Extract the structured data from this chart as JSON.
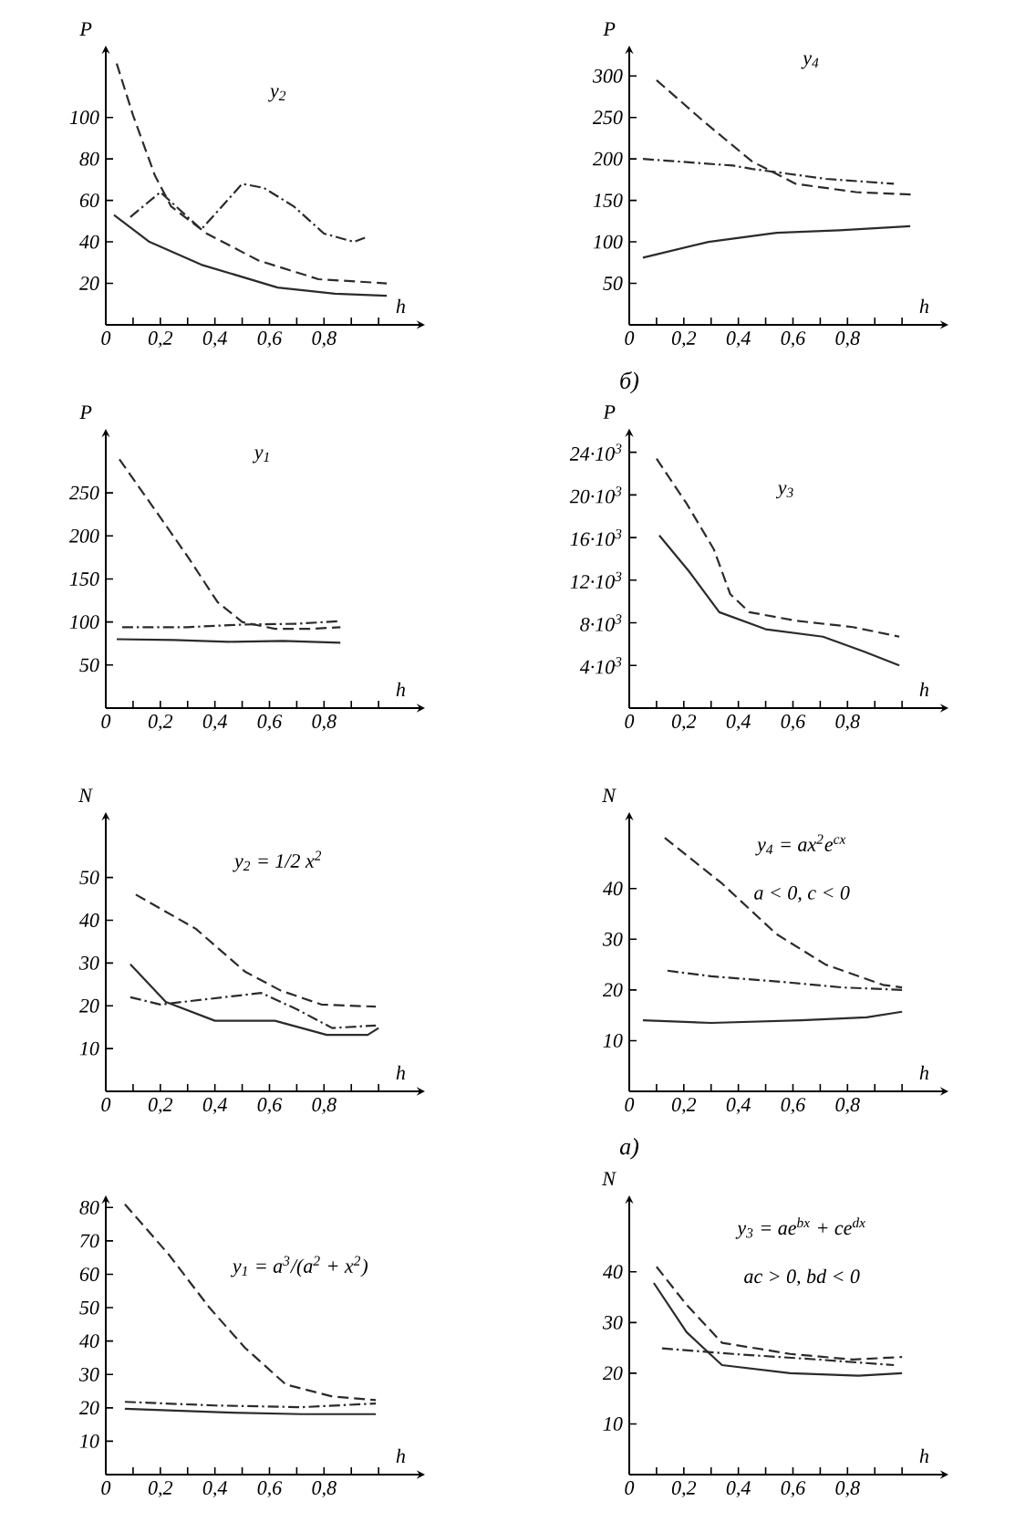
{
  "chart_data": [
    {
      "type": "line",
      "title": "y$_{1}$ = a$^{3}$/(a$^{2}$ + x$^{2}$)",
      "xlabel": "h",
      "xlim": [
        0,
        1.15
      ],
      "ylim": [
        0,
        82
      ],
      "xticks": [
        {
          "value": 0,
          "label": "0"
        },
        {
          "value": 0.1,
          "label": null
        },
        {
          "value": 0.2,
          "label": "0,2"
        },
        {
          "value": 0.3,
          "label": null
        },
        {
          "value": 0.4,
          "label": "0,4"
        },
        {
          "value": 0.5,
          "label": null
        },
        {
          "value": 0.6,
          "label": "0,6"
        },
        {
          "value": 0.7,
          "label": null
        },
        {
          "value": 0.8,
          "label": "0,8"
        },
        {
          "value": 0.9,
          "label": null
        },
        {
          "value": 1.0,
          "label": null
        }
      ],
      "yticks": [
        10,
        20,
        30,
        40,
        50,
        60,
        70,
        80
      ],
      "series": [
        {
          "color": "#2b2b2b",
          "line_style": "solid",
          "x": [
            0.07,
            0.44,
            0.72,
            0.99
          ],
          "values": [
            19.7,
            18.6,
            18.1,
            18.1
          ]
        },
        {
          "color": "#2b2b2b",
          "line_style": "dashed",
          "x": [
            0.07,
            0.23,
            0.38,
            0.51,
            0.66,
            0.83,
            0.99
          ],
          "values": [
            81,
            66,
            50,
            38,
            27,
            23.4,
            22.3
          ]
        },
        {
          "color": "#2b2b2b",
          "line_style": "dashdot",
          "x": [
            0.07,
            0.4,
            0.72,
            0.99
          ],
          "values": [
            21.8,
            20.7,
            20.2,
            21.3
          ]
        }
      ]
    },
    {
      "type": "line",
      "title": "y$_{2}$ = 1/2 x$^{2}$",
      "xlabel": "h",
      "ylabel": "N",
      "xlim": [
        0,
        1.15
      ],
      "ylim": [
        0,
        64
      ],
      "xticks": [
        {
          "value": 0,
          "label": "0"
        },
        {
          "value": 0.1,
          "label": null
        },
        {
          "value": 0.2,
          "label": "0,2"
        },
        {
          "value": 0.3,
          "label": null
        },
        {
          "value": 0.4,
          "label": "0,4"
        },
        {
          "value": 0.5,
          "label": null
        },
        {
          "value": 0.6,
          "label": "0,6"
        },
        {
          "value": 0.7,
          "label": null
        },
        {
          "value": 0.8,
          "label": "0,8"
        },
        {
          "value": 0.9,
          "label": null
        },
        {
          "value": 1.0,
          "label": null
        }
      ],
      "yticks": [
        10,
        20,
        30,
        40,
        50
      ],
      "series": [
        {
          "color": "#2b2b2b",
          "line_style": "solid",
          "x": [
            0.09,
            0.22,
            0.4,
            0.62,
            0.81,
            0.96,
            1.0
          ],
          "values": [
            29.7,
            20.9,
            16.5,
            16.5,
            13.2,
            13.2,
            14.8
          ]
        },
        {
          "color": "#2b2b2b",
          "line_style": "dashed",
          "x": [
            0.11,
            0.33,
            0.51,
            0.64,
            0.79,
            0.99
          ],
          "values": [
            46,
            38,
            28,
            23.6,
            20.3,
            19.8
          ]
        },
        {
          "color": "#2b2b2b",
          "line_style": "dashdot",
          "x": [
            0.09,
            0.2,
            0.35,
            0.57,
            0.7,
            0.83,
            0.99
          ],
          "values": [
            22,
            20.3,
            21.4,
            23,
            19.2,
            14.8,
            15.4
          ]
        }
      ]
    },
    {
      "type": "line",
      "title": "y$_{1}$",
      "xlabel": "h",
      "ylabel": "P",
      "xlim": [
        0,
        1.15
      ],
      "ylim": [
        0,
        318
      ],
      "xticks": [
        {
          "value": 0,
          "label": "0"
        },
        {
          "value": 0.1,
          "label": null
        },
        {
          "value": 0.2,
          "label": "0,2"
        },
        {
          "value": 0.3,
          "label": null
        },
        {
          "value": 0.4,
          "label": "0,4"
        },
        {
          "value": 0.5,
          "label": null
        },
        {
          "value": 0.6,
          "label": "0,6"
        },
        {
          "value": 0.7,
          "label": null
        },
        {
          "value": 0.8,
          "label": "0,8"
        },
        {
          "value": 0.9,
          "label": null
        },
        {
          "value": 1.0,
          "label": null
        }
      ],
      "yticks": [
        50,
        100,
        150,
        200,
        250
      ],
      "series": [
        {
          "color": "#2b2b2b",
          "line_style": "solid",
          "x": [
            0.04,
            0.25,
            0.45,
            0.65,
            0.86
          ],
          "values": [
            80,
            79,
            77,
            78,
            76
          ]
        },
        {
          "color": "#2b2b2b",
          "line_style": "dashed",
          "x": [
            0.05,
            0.17,
            0.3,
            0.41,
            0.5,
            0.62,
            0.75,
            0.86
          ],
          "values": [
            289,
            235,
            176,
            123,
            100,
            92,
            92,
            94
          ]
        },
        {
          "color": "#2b2b2b",
          "line_style": "dashdot",
          "x": [
            0.06,
            0.3,
            0.5,
            0.7,
            0.86
          ],
          "values": [
            94,
            94,
            97,
            98,
            101
          ]
        }
      ]
    },
    {
      "type": "line",
      "title": "y$_{2}$",
      "xlabel": "h",
      "ylabel": "P",
      "xlim": [
        0,
        1.15
      ],
      "ylim": [
        0,
        132
      ],
      "xticks": [
        {
          "value": 0,
          "label": "0"
        },
        {
          "value": 0.1,
          "label": null
        },
        {
          "value": 0.2,
          "label": "0,2"
        },
        {
          "value": 0.3,
          "label": null
        },
        {
          "value": 0.4,
          "label": "0,4"
        },
        {
          "value": 0.5,
          "label": null
        },
        {
          "value": 0.6,
          "label": "0,6"
        },
        {
          "value": 0.7,
          "label": null
        },
        {
          "value": 0.8,
          "label": "0,8"
        },
        {
          "value": 0.9,
          "label": null
        },
        {
          "value": 1.0,
          "label": null
        }
      ],
      "yticks": [
        20,
        40,
        60,
        80,
        100
      ],
      "series": [
        {
          "color": "#2b2b2b",
          "line_style": "solid",
          "x": [
            0.03,
            0.16,
            0.35,
            0.63,
            0.84,
            1.03
          ],
          "values": [
            53,
            40,
            29,
            18,
            15,
            14
          ]
        },
        {
          "color": "#2b2b2b",
          "line_style": "dashed",
          "x": [
            0.04,
            0.1,
            0.18,
            0.24,
            0.37,
            0.56,
            0.78,
            1.03
          ],
          "values": [
            126,
            101,
            72,
            57,
            44,
            31,
            22,
            20
          ]
        },
        {
          "color": "#2b2b2b",
          "line_style": "dashdot",
          "x": [
            0.09,
            0.2,
            0.35,
            0.5,
            0.58,
            0.69,
            0.8,
            0.91,
            0.95
          ],
          "values": [
            52,
            64,
            46,
            68,
            66,
            57,
            44,
            40,
            42
          ]
        }
      ]
    },
    {
      "type": "line",
      "title": "y$_{3}$ = ae$^{bx}$ + ce$^{dx}$",
      "subtitle": "ac > 0, bd < 0",
      "xlabel": "h",
      "ylabel": "N",
      "xlim": [
        0,
        1.15
      ],
      "ylim": [
        0,
        54
      ],
      "xticks": [
        {
          "value": 0,
          "label": "0"
        },
        {
          "value": 0.1,
          "label": null
        },
        {
          "value": 0.2,
          "label": "0,2"
        },
        {
          "value": 0.3,
          "label": null
        },
        {
          "value": 0.4,
          "label": "0,4"
        },
        {
          "value": 0.5,
          "label": null
        },
        {
          "value": 0.6,
          "label": "0,6"
        },
        {
          "value": 0.7,
          "label": null
        },
        {
          "value": 0.8,
          "label": "0,8"
        },
        {
          "value": 0.9,
          "label": null
        },
        {
          "value": 1.0,
          "label": null
        }
      ],
      "yticks": [
        10,
        20,
        30,
        40
      ],
      "series": [
        {
          "color": "#2b2b2b",
          "line_style": "solid",
          "x": [
            0.09,
            0.21,
            0.34,
            0.59,
            0.84,
            1.0
          ],
          "values": [
            37.8,
            28.1,
            21.6,
            20,
            19.5,
            20
          ]
        },
        {
          "color": "#2b2b2b",
          "line_style": "dashed",
          "x": [
            0.1,
            0.21,
            0.34,
            0.59,
            0.82,
            1.0
          ],
          "values": [
            41,
            33.5,
            26,
            23.8,
            22.7,
            23.2
          ]
        },
        {
          "color": "#2b2b2b",
          "line_style": "dashdot",
          "x": [
            0.12,
            0.38,
            0.69,
            0.97
          ],
          "values": [
            24.9,
            23.8,
            22.7,
            21.6
          ]
        }
      ]
    },
    {
      "type": "line",
      "title": "y$_{4}$ = ax$^{2}$e$^{cx}$",
      "subtitle": "a < 0, c < 0",
      "xlabel": "h",
      "ylabel": "N",
      "xlim": [
        0,
        1.15
      ],
      "ylim": [
        0,
        54
      ],
      "xticks": [
        {
          "value": 0,
          "label": "0"
        },
        {
          "value": 0.1,
          "label": null
        },
        {
          "value": 0.2,
          "label": "0,2"
        },
        {
          "value": 0.3,
          "label": null
        },
        {
          "value": 0.4,
          "label": "0,4"
        },
        {
          "value": 0.5,
          "label": null
        },
        {
          "value": 0.6,
          "label": "0,6"
        },
        {
          "value": 0.7,
          "label": null
        },
        {
          "value": 0.8,
          "label": "0,8"
        },
        {
          "value": 0.9,
          "label": null
        },
        {
          "value": 1.0,
          "label": null
        }
      ],
      "yticks": [
        10,
        20,
        30,
        40
      ],
      "annotations": [
        "а)"
      ],
      "series": [
        {
          "color": "#2b2b2b",
          "line_style": "solid",
          "x": [
            0.05,
            0.3,
            0.63,
            0.87,
            1.0
          ],
          "values": [
            14,
            13.5,
            14,
            14.6,
            15.7
          ]
        },
        {
          "color": "#2b2b2b",
          "line_style": "dashed",
          "x": [
            0.13,
            0.34,
            0.54,
            0.72,
            0.93,
            1.0
          ],
          "values": [
            50,
            41,
            31,
            25,
            21,
            20.5
          ]
        },
        {
          "color": "#2b2b2b",
          "line_style": "dashdot",
          "x": [
            0.14,
            0.3,
            0.56,
            0.78,
            1.0
          ],
          "values": [
            23.8,
            22.7,
            21.6,
            20.5,
            20
          ]
        }
      ]
    },
    {
      "type": "line",
      "title": "y$_{3}$",
      "xlabel": "h",
      "ylabel": "P",
      "xlim": [
        0,
        1.15
      ],
      "ylim": [
        0,
        25700
      ],
      "xticks": [
        {
          "value": 0,
          "label": "0"
        },
        {
          "value": 0.1,
          "label": null
        },
        {
          "value": 0.2,
          "label": "0,2"
        },
        {
          "value": 0.3,
          "label": null
        },
        {
          "value": 0.4,
          "label": "0,4"
        },
        {
          "value": 0.5,
          "label": null
        },
        {
          "value": 0.6,
          "label": "0,6"
        },
        {
          "value": 0.7,
          "label": null
        },
        {
          "value": 0.8,
          "label": "0,8"
        },
        {
          "value": 0.9,
          "label": null
        },
        {
          "value": 1.0,
          "label": null
        }
      ],
      "yticks": [
        {
          "value": 4000,
          "label": "4·10$^{3}$"
        },
        {
          "value": 8000,
          "label": "8·10$^{3}$"
        },
        {
          "value": 12000,
          "label": "12·10$^{3}$"
        },
        {
          "value": 16000,
          "label": "16·10$^{3}$"
        },
        {
          "value": 20000,
          "label": "20·10$^{3}$"
        },
        {
          "value": 24000,
          "label": "24·10$^{3}$"
        }
      ],
      "series": [
        {
          "color": "#2b2b2b",
          "line_style": "solid",
          "x": [
            0.11,
            0.22,
            0.33,
            0.5,
            0.71,
            0.86,
            0.99
          ],
          "values": [
            16200,
            12800,
            9000,
            7400,
            6700,
            5300,
            4000
          ]
        },
        {
          "color": "#2b2b2b",
          "line_style": "dashed",
          "x": [
            0.1,
            0.21,
            0.31,
            0.37,
            0.44,
            0.61,
            0.82,
            0.99
          ],
          "values": [
            23400,
            19200,
            14900,
            10700,
            9000,
            8200,
            7600,
            6700
          ]
        }
      ]
    },
    {
      "type": "line",
      "title": "y$_{4}$",
      "xlabel": "h",
      "ylabel": "P",
      "xlim": [
        0,
        1.15
      ],
      "ylim": [
        0,
        330
      ],
      "xticks": [
        {
          "value": 0,
          "label": "0"
        },
        {
          "value": 0.1,
          "label": null
        },
        {
          "value": 0.2,
          "label": "0,2"
        },
        {
          "value": 0.3,
          "label": null
        },
        {
          "value": 0.4,
          "label": "0,4"
        },
        {
          "value": 0.5,
          "label": null
        },
        {
          "value": 0.6,
          "label": "0,6"
        },
        {
          "value": 0.7,
          "label": null
        },
        {
          "value": 0.8,
          "label": "0,8"
        },
        {
          "value": 0.9,
          "label": null
        },
        {
          "value": 1.0,
          "label": null
        }
      ],
      "yticks": [
        50,
        100,
        150,
        200,
        250,
        300
      ],
      "annotations": [
        "б)"
      ],
      "series": [
        {
          "color": "#2b2b2b",
          "line_style": "solid",
          "x": [
            0.05,
            0.29,
            0.54,
            0.77,
            1.03
          ],
          "values": [
            81,
            100,
            111,
            114,
            119
          ]
        },
        {
          "color": "#2b2b2b",
          "line_style": "dashed",
          "x": [
            0.1,
            0.27,
            0.45,
            0.61,
            0.83,
            1.04
          ],
          "values": [
            295,
            246,
            197,
            170,
            160,
            157
          ]
        },
        {
          "color": "#2b2b2b",
          "line_style": "dashdot",
          "x": [
            0.05,
            0.38,
            0.45,
            0.72,
            0.97
          ],
          "values": [
            200,
            192,
            188,
            176,
            170
          ]
        }
      ]
    }
  ]
}
